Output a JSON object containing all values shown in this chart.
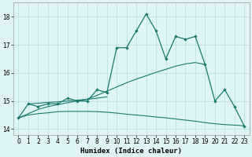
{
  "xlabel": "Humidex (Indice chaleur)",
  "x": [
    0,
    1,
    2,
    3,
    4,
    5,
    6,
    7,
    8,
    9,
    10,
    11,
    12,
    13,
    14,
    15,
    16,
    17,
    18,
    19,
    20,
    21,
    22,
    23
  ],
  "main_line": [
    14.4,
    14.9,
    14.8,
    14.9,
    14.9,
    15.1,
    15.0,
    15.0,
    15.4,
    15.3,
    16.9,
    16.9,
    17.5,
    18.1,
    17.5,
    16.5,
    17.3,
    17.2,
    17.3,
    16.3,
    15.0,
    15.4,
    14.8,
    14.1
  ],
  "trend_up_x": [
    0,
    1,
    2,
    3,
    4,
    5,
    6,
    7,
    8,
    9,
    10,
    11,
    12,
    13,
    14,
    15,
    16,
    17,
    18,
    19
  ],
  "trend_up_y": [
    14.4,
    14.55,
    14.7,
    14.8,
    14.87,
    14.94,
    15.0,
    15.07,
    15.2,
    15.35,
    15.5,
    15.65,
    15.78,
    15.9,
    16.02,
    16.13,
    16.24,
    16.32,
    16.37,
    16.3
  ],
  "trend_down_x": [
    0,
    1,
    2,
    3,
    4,
    5,
    6,
    7,
    8,
    9,
    10,
    11,
    12,
    13,
    14,
    15,
    16,
    17,
    18,
    19,
    20,
    21,
    22,
    23
  ],
  "trend_down_y": [
    14.4,
    14.5,
    14.55,
    14.58,
    14.62,
    14.63,
    14.63,
    14.63,
    14.62,
    14.6,
    14.57,
    14.53,
    14.5,
    14.47,
    14.43,
    14.4,
    14.36,
    14.32,
    14.28,
    14.23,
    14.19,
    14.16,
    14.14,
    14.12
  ],
  "mid_line_x": [
    1,
    2,
    3,
    4,
    5,
    6,
    7,
    8,
    9
  ],
  "mid_line_y": [
    14.9,
    14.92,
    14.95,
    14.97,
    15.0,
    15.03,
    15.06,
    15.1,
    15.15
  ],
  "line_color": "#1a7a6e",
  "bg_color": "#dff4f4",
  "grid_color": "#b8dede",
  "ylim": [
    13.8,
    18.5
  ],
  "xlim": [
    -0.5,
    23.5
  ],
  "yticks": [
    14,
    15,
    16,
    17,
    18
  ],
  "xticks": [
    0,
    1,
    2,
    3,
    4,
    5,
    6,
    7,
    8,
    9,
    10,
    11,
    12,
    13,
    14,
    15,
    16,
    17,
    18,
    19,
    20,
    21,
    22,
    23
  ]
}
